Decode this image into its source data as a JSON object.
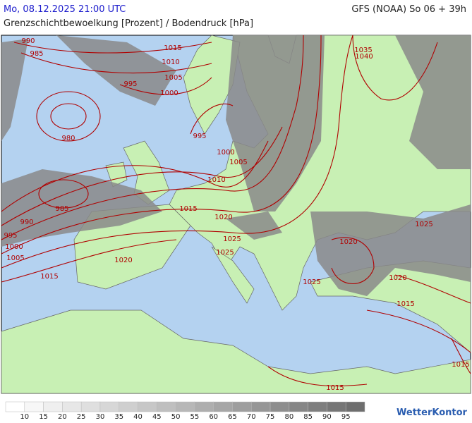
{
  "header": {
    "datetime": "Mo, 08.12.2025 21:00 UTC",
    "model": "GFS (NOAA) So 06 + 39h",
    "title": "Grenzschichtbewoelkung [Prozent] / Bodendruck [hPa]"
  },
  "isobar_labels": [
    "990",
    "985",
    "1015",
    "1010",
    "1005",
    "995",
    "1000",
    "980",
    "995",
    "1000",
    "1005",
    "1010",
    "985",
    "1015",
    "990",
    "1020",
    "995",
    "1000",
    "1005",
    "1025",
    "1025",
    "1020",
    "1015",
    "1025",
    "1020",
    "1025",
    "1020",
    "1015",
    "1015",
    "1015",
    "1035",
    "1040"
  ],
  "legend": {
    "values": [
      10,
      15,
      20,
      25,
      30,
      35,
      40,
      45,
      50,
      55,
      60,
      65,
      70,
      75,
      80,
      85,
      90,
      95
    ]
  },
  "brand": "WetterKontor"
}
